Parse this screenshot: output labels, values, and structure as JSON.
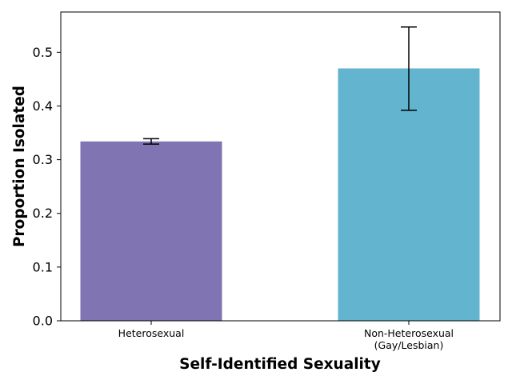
{
  "chart_data": {
    "type": "bar",
    "categories": [
      "Heterosexual",
      "Non-Heterosexual\n(Gay/Lesbian)"
    ],
    "values": [
      0.334,
      0.47
    ],
    "error": [
      {
        "low": 0.329,
        "high": 0.339
      },
      {
        "low": 0.392,
        "high": 0.547
      }
    ],
    "colors": [
      "#8074b2",
      "#63b4cf"
    ],
    "xlabel": "Self-Identified Sexuality",
    "ylabel": "Proportion Isolated",
    "ylim": [
      0,
      0.575
    ],
    "yticks": [
      "0.0",
      "0.1",
      "0.2",
      "0.3",
      "0.4",
      "0.5"
    ],
    "grid": false,
    "legend": "none"
  }
}
